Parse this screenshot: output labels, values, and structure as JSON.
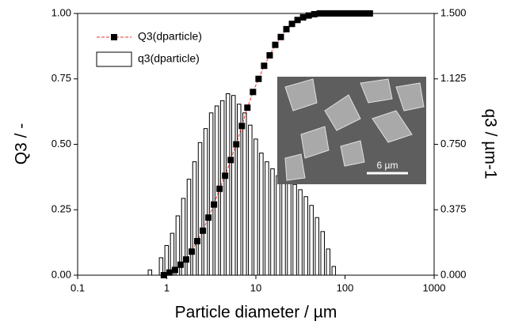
{
  "chart_data": {
    "type": "combo",
    "xlabel": "Particle diameter / µm",
    "ylabel": "Q3 / -",
    "y2label": "q3 / µm-1",
    "xscale": "log",
    "xlim": [
      0.1,
      1000
    ],
    "xticks": [
      0.1,
      1,
      10,
      100,
      1000
    ],
    "ylim": [
      0,
      1
    ],
    "yticks": [
      {
        "value": 0,
        "label": "0.00"
      },
      0.25,
      {
        "value": 0.5,
        "label": "0.50"
      },
      0.75,
      {
        "value": 1,
        "label": "1.00"
      }
    ],
    "y2lim": [
      0,
      1.5
    ],
    "y2ticks": [
      {
        "value": 0,
        "label": "0.000"
      },
      0.375,
      {
        "value": 0.75,
        "label": "0.750"
      },
      1.125,
      {
        "value": 1.5,
        "label": "1.500"
      }
    ],
    "legend": "upper left",
    "series": [
      {
        "name": "Q3(dparticle)",
        "type": "line",
        "color": "#e8302a",
        "marker_color": "#000000",
        "x": [
          0.928,
          1.072,
          1.237,
          1.429,
          1.65,
          1.905,
          2.2,
          2.541,
          2.934,
          3.388,
          3.912,
          4.519,
          5.218,
          6.026,
          6.959,
          8.035,
          9.279,
          10.72,
          12.37,
          14.29,
          16.5,
          19.05,
          22.0,
          25.41,
          29.34,
          33.88,
          39.12,
          45.19,
          52.18,
          60.26,
          69.59,
          80.35,
          92.8,
          107,
          124,
          143,
          165,
          190
        ],
        "values": [
          0.0,
          0.01,
          0.02,
          0.04,
          0.06,
          0.09,
          0.13,
          0.17,
          0.22,
          0.27,
          0.33,
          0.38,
          0.44,
          0.5,
          0.57,
          0.64,
          0.7,
          0.75,
          0.8,
          0.84,
          0.88,
          0.91,
          0.94,
          0.96,
          0.975,
          0.985,
          0.992,
          0.997,
          1.0,
          1.0,
          1.0,
          1.0,
          1.0,
          1.0,
          1.0,
          1.0,
          1.0,
          1.0
        ]
      },
      {
        "name": "q3(dparticle)",
        "type": "histogram",
        "axis": "y2",
        "color": "#ffffff",
        "edge_color": "#000000",
        "bins": [
          0.603,
          0.696,
          0.804,
          0.928,
          1.072,
          1.237,
          1.429,
          1.65,
          1.905,
          2.2,
          2.541,
          2.934,
          3.388,
          3.912,
          4.519,
          5.218,
          6.026,
          6.959,
          8.035,
          9.279,
          10.72,
          12.37,
          14.29,
          16.5,
          19.05,
          22.0,
          25.41,
          29.34,
          33.88,
          39.12,
          45.19,
          52.18,
          60.26,
          69.59,
          80.35
        ],
        "values": [
          0.03,
          0.0,
          0.1,
          0.17,
          0.24,
          0.34,
          0.44,
          0.55,
          0.65,
          0.76,
          0.84,
          0.93,
          0.97,
          1.0,
          1.04,
          1.03,
          0.98,
          0.93,
          0.86,
          0.78,
          0.7,
          0.65,
          0.61,
          0.57,
          0.55,
          0.54,
          0.52,
          0.49,
          0.45,
          0.4,
          0.33,
          0.25,
          0.15,
          0.05
        ]
      }
    ],
    "inset": {
      "scale_label": "6 µm"
    }
  }
}
